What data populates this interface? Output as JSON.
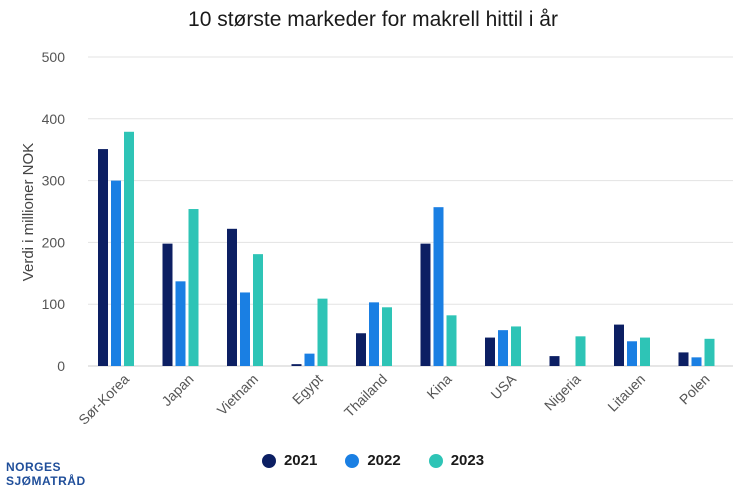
{
  "chart_data": {
    "type": "bar",
    "title": "10 største markeder for makrell hittil i år",
    "ylabel": "Verdi i millioner NOK",
    "xlabel": "",
    "ylim": [
      0,
      500
    ],
    "yticks": [
      0,
      100,
      200,
      300,
      400,
      500
    ],
    "grid": true,
    "legend_position": "bottom",
    "categories": [
      "Sør-Korea",
      "Japan",
      "Vietnam",
      "Egypt",
      "Thailand",
      "Kina",
      "USA",
      "Nigeria",
      "Litauen",
      "Polen"
    ],
    "series": [
      {
        "name": "2021",
        "color": "#0c1f63",
        "values": [
          351,
          198,
          222,
          3,
          53,
          198,
          46,
          16,
          67,
          22
        ]
      },
      {
        "name": "2022",
        "color": "#1a7fe3",
        "values": [
          300,
          137,
          119,
          20,
          103,
          257,
          58,
          0,
          40,
          14
        ]
      },
      {
        "name": "2023",
        "color": "#2ec4b6",
        "values": [
          379,
          254,
          181,
          109,
          95,
          82,
          64,
          48,
          46,
          44
        ]
      }
    ]
  },
  "brand": {
    "line1": "NORGES",
    "line2": "SJØMATRÅD"
  }
}
